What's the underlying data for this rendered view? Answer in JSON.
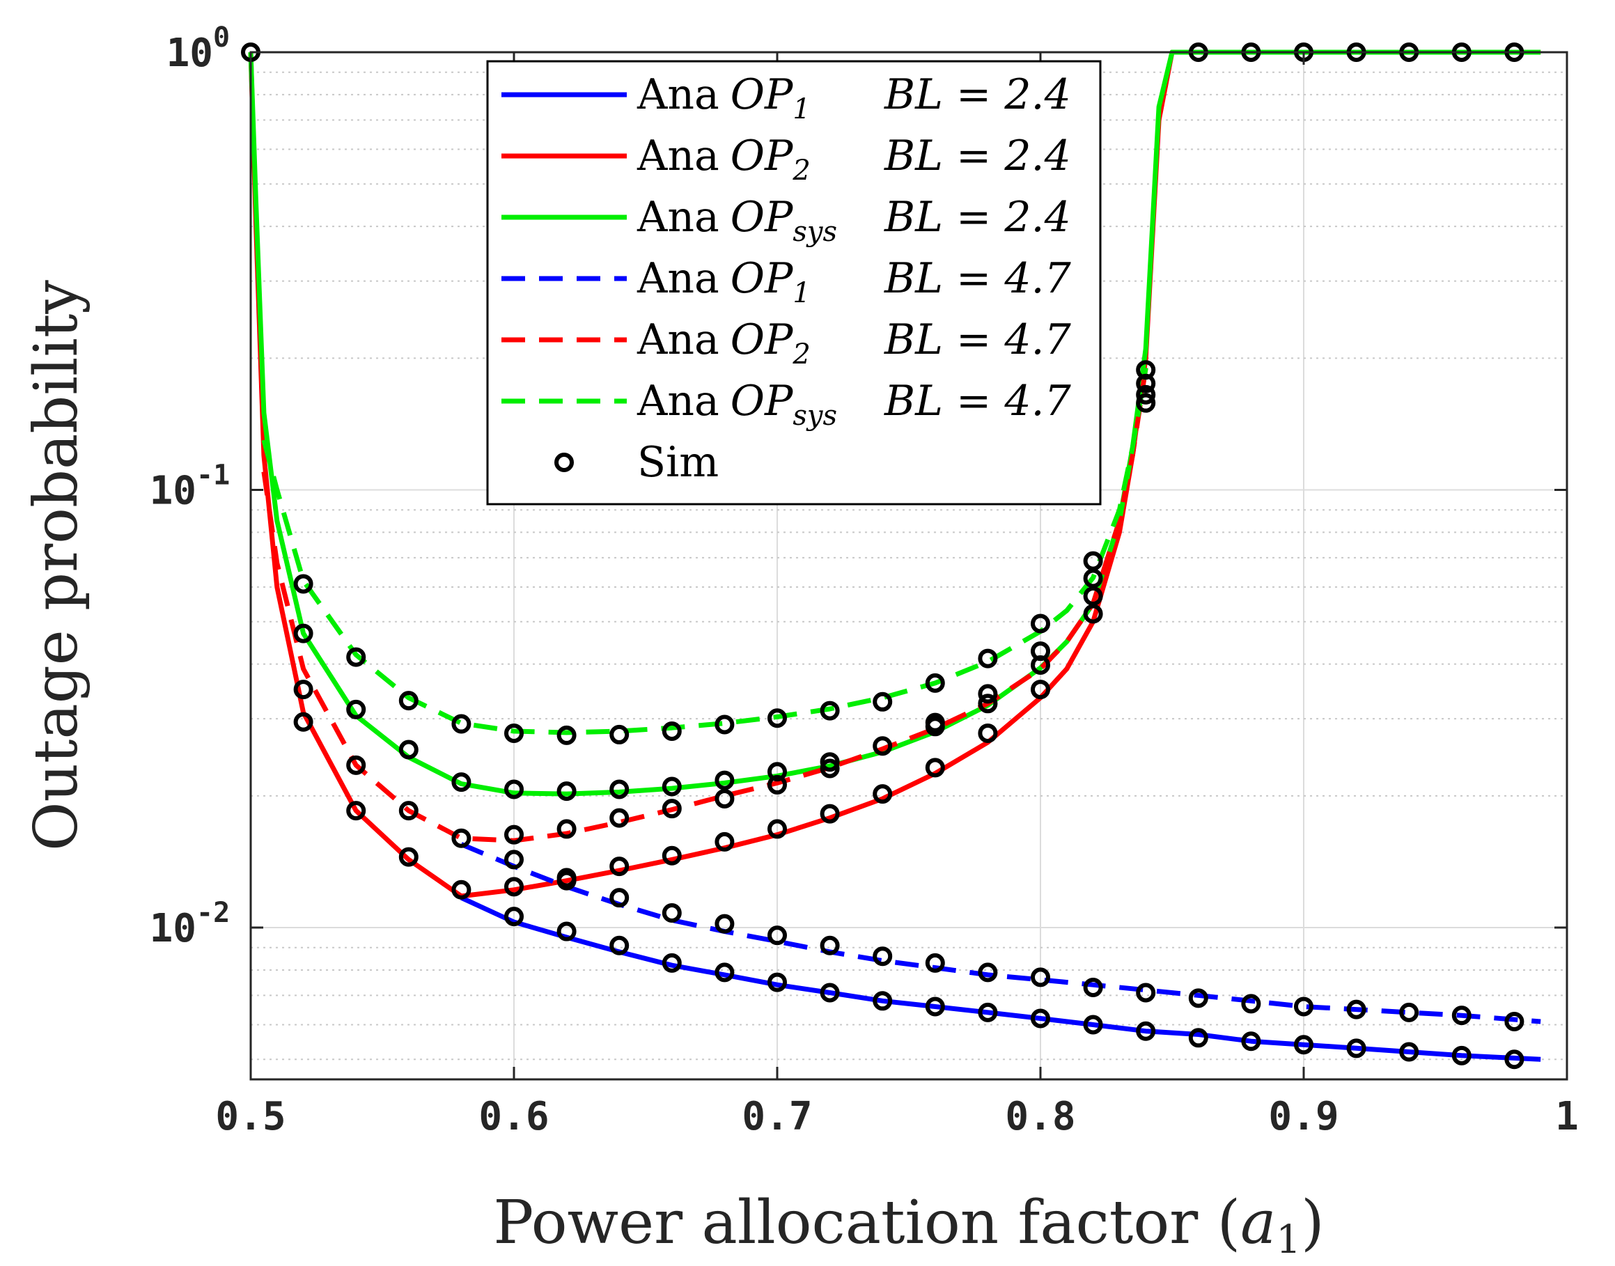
{
  "chart_data": {
    "type": "line",
    "title": "",
    "xlabel": "Power allocation factor",
    "xlabel_symbol": "a",
    "xlabel_symbol_sub": "1",
    "ylabel": "Outage probability",
    "xlim": [
      0.5,
      1.0
    ],
    "ylim": [
      0.0045,
      1.0
    ],
    "yscale": "log",
    "grid": true,
    "legend_position": "top-center",
    "x_ticks": [
      "0.5",
      "0.6",
      "0.7",
      "0.8",
      "0.9",
      "1"
    ],
    "x_tick_values": [
      0.5,
      0.6,
      0.7,
      0.8,
      0.9,
      1.0
    ],
    "y_ticks": [
      {
        "value": 1.0,
        "base": "10",
        "exp": "0"
      },
      {
        "value": 0.1,
        "base": "10",
        "exp": "-1"
      },
      {
        "value": 0.01,
        "base": "10",
        "exp": "-2"
      }
    ],
    "colors": {
      "blue": "#0000ff",
      "red": "#ff0000",
      "green": "#00ee00",
      "marker": "#000000"
    },
    "series": [
      {
        "name": "Ana OP1 BL = 2.4",
        "label": "Ana",
        "sym": "OP",
        "sub": "1",
        "bl": "BL = 2.4",
        "color": "#0000ff",
        "dash": "solid",
        "x": [
          0.58,
          0.6,
          0.62,
          0.64,
          0.66,
          0.68,
          0.7,
          0.72,
          0.74,
          0.76,
          0.78,
          0.8,
          0.82,
          0.84,
          0.86,
          0.88,
          0.9,
          0.92,
          0.94,
          0.96,
          0.99
        ],
        "y": [
          0.0117,
          0.0103,
          0.0095,
          0.0088,
          0.0082,
          0.0078,
          0.0074,
          0.0071,
          0.0068,
          0.0066,
          0.0064,
          0.0062,
          0.006,
          0.0058,
          0.0057,
          0.0055,
          0.0054,
          0.0053,
          0.0052,
          0.0051,
          0.005
        ]
      },
      {
        "name": "Ana OP2 BL = 2.4",
        "label": "Ana",
        "sym": "OP",
        "sub": "2",
        "bl": "BL = 2.4",
        "color": "#ff0000",
        "dash": "solid",
        "x": [
          0.5,
          0.502,
          0.505,
          0.51,
          0.52,
          0.54,
          0.56,
          0.58,
          0.6,
          0.62,
          0.64,
          0.66,
          0.68,
          0.7,
          0.72,
          0.74,
          0.76,
          0.78,
          0.8,
          0.81,
          0.82,
          0.83,
          0.835,
          0.84,
          0.845,
          0.85,
          0.99
        ],
        "y": [
          1.0,
          0.4,
          0.12,
          0.06,
          0.031,
          0.0185,
          0.0143,
          0.0118,
          0.0122,
          0.0128,
          0.0135,
          0.0143,
          0.0152,
          0.0163,
          0.0178,
          0.0197,
          0.0225,
          0.0265,
          0.0335,
          0.039,
          0.05,
          0.08,
          0.12,
          0.2,
          0.7,
          1.0,
          1.0
        ]
      },
      {
        "name": "Ana OPsys BL = 2.4",
        "label": "Ana",
        "sym": "OP",
        "sub": "sys",
        "bl": "BL = 2.4",
        "color": "#00ee00",
        "dash": "solid",
        "x": [
          0.5,
          0.502,
          0.505,
          0.51,
          0.52,
          0.54,
          0.56,
          0.58,
          0.6,
          0.62,
          0.64,
          0.66,
          0.68,
          0.7,
          0.72,
          0.74,
          0.76,
          0.78,
          0.8,
          0.81,
          0.82,
          0.83,
          0.835,
          0.84,
          0.845,
          0.85,
          0.99
        ],
        "y": [
          1.0,
          0.45,
          0.15,
          0.085,
          0.047,
          0.0305,
          0.0245,
          0.0213,
          0.0203,
          0.0202,
          0.0204,
          0.0208,
          0.0214,
          0.0222,
          0.0234,
          0.0252,
          0.028,
          0.0322,
          0.0392,
          0.045,
          0.055,
          0.085,
          0.125,
          0.21,
          0.75,
          1.0,
          1.0
        ]
      },
      {
        "name": "Ana OP1 BL = 4.7",
        "label": "Ana",
        "sym": "OP",
        "sub": "1",
        "bl": "BL = 4.7",
        "color": "#0000ff",
        "dash": "dashed",
        "x": [
          0.58,
          0.6,
          0.62,
          0.64,
          0.66,
          0.68,
          0.7,
          0.72,
          0.74,
          0.76,
          0.78,
          0.8,
          0.82,
          0.84,
          0.86,
          0.88,
          0.9,
          0.92,
          0.94,
          0.96,
          0.99
        ],
        "y": [
          0.0155,
          0.0138,
          0.0124,
          0.0113,
          0.0104,
          0.0098,
          0.0093,
          0.0088,
          0.0084,
          0.0081,
          0.0078,
          0.0076,
          0.0074,
          0.0072,
          0.007,
          0.0068,
          0.0066,
          0.0065,
          0.0064,
          0.0063,
          0.0061
        ]
      },
      {
        "name": "Ana OP2 BL = 4.7",
        "label": "Ana",
        "sym": "OP",
        "sub": "2",
        "bl": "BL = 4.7",
        "color": "#ff0000",
        "dash": "dashed",
        "x": [
          0.505,
          0.51,
          0.52,
          0.54,
          0.56,
          0.58,
          0.6,
          0.62,
          0.64,
          0.66,
          0.68,
          0.7,
          0.72,
          0.74,
          0.76,
          0.78,
          0.8,
          0.81,
          0.82,
          0.83,
          0.835,
          0.84
        ],
        "y": [
          0.11,
          0.068,
          0.039,
          0.0235,
          0.0185,
          0.016,
          0.0158,
          0.0164,
          0.0174,
          0.0186,
          0.02,
          0.0214,
          0.0232,
          0.0256,
          0.0285,
          0.0325,
          0.039,
          0.045,
          0.055,
          0.085,
          0.12,
          0.19
        ]
      },
      {
        "name": "Ana OPsys BL = 4.7",
        "label": "Ana",
        "sym": "OP",
        "sub": "sys",
        "bl": "BL = 4.7",
        "color": "#00ee00",
        "dash": "dashed",
        "x": [
          0.505,
          0.51,
          0.52,
          0.54,
          0.56,
          0.58,
          0.6,
          0.62,
          0.64,
          0.66,
          0.68,
          0.7,
          0.72,
          0.74,
          0.76,
          0.78,
          0.8,
          0.81,
          0.82,
          0.83,
          0.835,
          0.84
        ],
        "y": [
          0.13,
          0.1,
          0.062,
          0.042,
          0.0335,
          0.0293,
          0.0281,
          0.0279,
          0.0281,
          0.0286,
          0.0293,
          0.0303,
          0.0316,
          0.0335,
          0.0362,
          0.0405,
          0.0475,
          0.053,
          0.063,
          0.09,
          0.125,
          0.19
        ]
      }
    ],
    "markers": {
      "name": "Sim",
      "points": [
        [
          0.5,
          1.0
        ],
        [
          0.52,
          0.061
        ],
        [
          0.52,
          0.047
        ],
        [
          0.52,
          0.035
        ],
        [
          0.52,
          0.0295
        ],
        [
          0.54,
          0.0415
        ],
        [
          0.54,
          0.0315
        ],
        [
          0.54,
          0.0235
        ],
        [
          0.54,
          0.0185
        ],
        [
          0.56,
          0.033
        ],
        [
          0.56,
          0.0255
        ],
        [
          0.56,
          0.0185
        ],
        [
          0.56,
          0.0145
        ],
        [
          0.58,
          0.0292
        ],
        [
          0.58,
          0.0215
        ],
        [
          0.58,
          0.016
        ],
        [
          0.58,
          0.0122
        ],
        [
          0.6,
          0.0278
        ],
        [
          0.6,
          0.0207
        ],
        [
          0.6,
          0.0163
        ],
        [
          0.6,
          0.0143
        ],
        [
          0.6,
          0.0124
        ],
        [
          0.6,
          0.0106
        ],
        [
          0.62,
          0.0275
        ],
        [
          0.62,
          0.0205
        ],
        [
          0.62,
          0.0168
        ],
        [
          0.62,
          0.013
        ],
        [
          0.62,
          0.0128
        ],
        [
          0.62,
          0.0098
        ],
        [
          0.64,
          0.0276
        ],
        [
          0.64,
          0.0207
        ],
        [
          0.64,
          0.0178
        ],
        [
          0.64,
          0.0138
        ],
        [
          0.64,
          0.0117
        ],
        [
          0.64,
          0.0091
        ],
        [
          0.66,
          0.0281
        ],
        [
          0.66,
          0.021
        ],
        [
          0.66,
          0.0187
        ],
        [
          0.66,
          0.0146
        ],
        [
          0.66,
          0.0108
        ],
        [
          0.66,
          0.0083
        ],
        [
          0.68,
          0.0291
        ],
        [
          0.68,
          0.0217
        ],
        [
          0.68,
          0.0197
        ],
        [
          0.68,
          0.0157
        ],
        [
          0.68,
          0.0102
        ],
        [
          0.68,
          0.0079
        ],
        [
          0.7,
          0.0301
        ],
        [
          0.7,
          0.0227
        ],
        [
          0.7,
          0.0212
        ],
        [
          0.7,
          0.0168
        ],
        [
          0.7,
          0.0096
        ],
        [
          0.7,
          0.0075
        ],
        [
          0.72,
          0.0313
        ],
        [
          0.72,
          0.0239
        ],
        [
          0.72,
          0.0231
        ],
        [
          0.72,
          0.0182
        ],
        [
          0.72,
          0.0091
        ],
        [
          0.72,
          0.0071
        ],
        [
          0.74,
          0.0328
        ],
        [
          0.74,
          0.026
        ],
        [
          0.74,
          0.0202
        ],
        [
          0.74,
          0.0086
        ],
        [
          0.74,
          0.0068
        ],
        [
          0.76,
          0.0362
        ],
        [
          0.76,
          0.0294
        ],
        [
          0.76,
          0.0288
        ],
        [
          0.76,
          0.0232
        ],
        [
          0.76,
          0.0083
        ],
        [
          0.76,
          0.0066
        ],
        [
          0.78,
          0.0412
        ],
        [
          0.78,
          0.0342
        ],
        [
          0.78,
          0.0325
        ],
        [
          0.78,
          0.0278
        ],
        [
          0.78,
          0.0079
        ],
        [
          0.78,
          0.0064
        ],
        [
          0.8,
          0.0495
        ],
        [
          0.8,
          0.0428
        ],
        [
          0.8,
          0.0398
        ],
        [
          0.8,
          0.035
        ],
        [
          0.8,
          0.0077
        ],
        [
          0.8,
          0.0062
        ],
        [
          0.82,
          0.0688
        ],
        [
          0.82,
          0.0628
        ],
        [
          0.82,
          0.0572
        ],
        [
          0.82,
          0.0521
        ],
        [
          0.82,
          0.0073
        ],
        [
          0.82,
          0.006
        ],
        [
          0.84,
          0.188
        ],
        [
          0.84,
          0.175
        ],
        [
          0.84,
          0.165
        ],
        [
          0.84,
          0.158
        ],
        [
          0.84,
          0.0071
        ],
        [
          0.84,
          0.0058
        ],
        [
          0.86,
          1.0
        ],
        [
          0.86,
          0.0069
        ],
        [
          0.86,
          0.0056
        ],
        [
          0.88,
          1.0
        ],
        [
          0.88,
          0.0067
        ],
        [
          0.88,
          0.0055
        ],
        [
          0.9,
          1.0
        ],
        [
          0.9,
          0.0066
        ],
        [
          0.9,
          0.0054
        ],
        [
          0.92,
          1.0
        ],
        [
          0.92,
          0.0065
        ],
        [
          0.92,
          0.0053
        ],
        [
          0.94,
          1.0
        ],
        [
          0.94,
          0.0064
        ],
        [
          0.94,
          0.0052
        ],
        [
          0.96,
          1.0
        ],
        [
          0.96,
          0.0063
        ],
        [
          0.96,
          0.0051
        ],
        [
          0.98,
          1.0
        ],
        [
          0.98,
          0.0061
        ],
        [
          0.98,
          0.005
        ]
      ]
    },
    "legend": [
      {
        "label": "Ana",
        "sym": "OP",
        "sub": "1",
        "bl": "BL = 2.4"
      },
      {
        "label": "Ana",
        "sym": "OP",
        "sub": "2",
        "bl": "BL = 2.4"
      },
      {
        "label": "Ana",
        "sym": "OP",
        "sub": "sys",
        "bl": "BL = 2.4"
      },
      {
        "label": "Ana",
        "sym": "OP",
        "sub": "1",
        "bl": "BL = 4.7"
      },
      {
        "label": "Ana",
        "sym": "OP",
        "sub": "2",
        "bl": "BL = 4.7"
      },
      {
        "label": "Ana",
        "sym": "OP",
        "sub": "sys",
        "bl": "BL = 4.7"
      },
      {
        "label": "Sim",
        "sym": "",
        "sub": "",
        "bl": ""
      }
    ]
  }
}
